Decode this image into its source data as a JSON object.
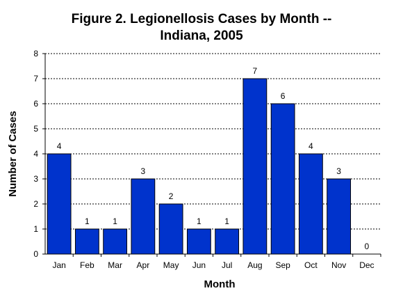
{
  "chart_data": {
    "type": "bar",
    "title_line1": "Figure 2.  Legionellosis Cases by Month --",
    "title_line2": "Indiana, 2005",
    "xlabel": "Month",
    "ylabel": "Number of Cases",
    "categories": [
      "Jan",
      "Feb",
      "Mar",
      "Apr",
      "May",
      "Jun",
      "Jul",
      "Aug",
      "Sep",
      "Oct",
      "Nov",
      "Dec"
    ],
    "values": [
      4,
      1,
      1,
      3,
      2,
      1,
      1,
      7,
      6,
      4,
      3,
      0
    ],
    "ylim": [
      0,
      8
    ],
    "yticks": [
      "0",
      "1",
      "2",
      "3",
      "4",
      "5",
      "6",
      "7",
      "8"
    ],
    "grid": true,
    "legend": "none",
    "bar_color": "#0033cc"
  }
}
